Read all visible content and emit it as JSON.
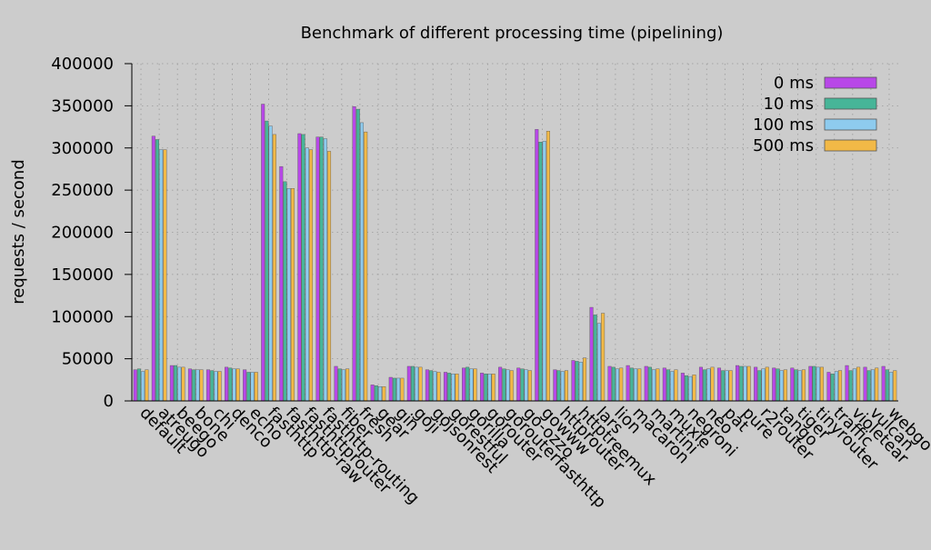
{
  "chart_data": {
    "type": "bar",
    "title": "Benchmark of different processing time (pipelining)",
    "xlabel": "",
    "ylabel": "requests / second",
    "ylim": [
      0,
      400000
    ],
    "yticks": [
      "0",
      "50000",
      "100000",
      "150000",
      "200000",
      "250000",
      "300000",
      "350000",
      "400000"
    ],
    "grid": true,
    "legend_position": "top-right",
    "categories": [
      "default",
      "atreugo",
      "beego",
      "bone",
      "chi",
      "denco",
      "echo",
      "fasthttp",
      "fasthttp-raw",
      "fasthttprouter",
      "fasthttp-routing",
      "fiber",
      "fresh",
      "gear",
      "gin",
      "goji",
      "gojsonrest",
      "gorestful",
      "gorilla",
      "gorouter",
      "gorouterfasthttp",
      "go-ozzo",
      "gowww",
      "httprouter",
      "httptreemux",
      "lars",
      "lion",
      "macaron",
      "martini",
      "muxie",
      "negroni",
      "neo",
      "pat",
      "pure",
      "r2router",
      "tango",
      "tiger",
      "tinyrouter",
      "traffic",
      "violetear",
      "vulcan",
      "webgo"
    ],
    "series": [
      {
        "name": "0 ms",
        "color": "#b847e8",
        "values": [
          37000,
          314000,
          42000,
          38000,
          37000,
          40000,
          37000,
          352000,
          278000,
          317000,
          313000,
          41000,
          349000,
          19000,
          28000,
          41000,
          37000,
          34000,
          39000,
          33000,
          40000,
          39000,
          322000,
          37000,
          48000,
          111000,
          41000,
          42000,
          41000,
          39000,
          33000,
          40000,
          39000,
          42000,
          40000,
          39000,
          39000,
          41000,
          34000,
          42000,
          40000,
          41000
        ]
      },
      {
        "name": "10 ms",
        "color": "#47b598",
        "values": [
          38000,
          310000,
          42000,
          37000,
          36000,
          39000,
          34000,
          332000,
          260000,
          316000,
          313000,
          38000,
          346000,
          18000,
          27000,
          41000,
          36000,
          33000,
          40000,
          32000,
          38000,
          38000,
          307000,
          36000,
          47000,
          102000,
          40000,
          39000,
          40000,
          37000,
          30000,
          37000,
          36000,
          41000,
          36000,
          38000,
          37000,
          41000,
          32000,
          36000,
          36000,
          37000
        ]
      },
      {
        "name": "100 ms",
        "color": "#8ecbee",
        "values": [
          35000,
          298000,
          40000,
          37000,
          35000,
          38000,
          34000,
          326000,
          252000,
          300000,
          311000,
          37000,
          330000,
          17000,
          27000,
          40000,
          35000,
          32000,
          38000,
          32000,
          37000,
          37000,
          308000,
          35000,
          46000,
          92000,
          38000,
          38000,
          37000,
          35000,
          29000,
          38000,
          36000,
          41000,
          38000,
          36000,
          36000,
          40000,
          35000,
          38000,
          37000,
          34000
        ]
      },
      {
        "name": "500 ms",
        "color": "#f2b947",
        "values": [
          37000,
          298000,
          40000,
          37000,
          35000,
          38000,
          34000,
          316000,
          252000,
          298000,
          296000,
          38000,
          319000,
          17000,
          27000,
          40000,
          34000,
          32000,
          38000,
          32000,
          36000,
          36000,
          320000,
          36000,
          51000,
          104000,
          39000,
          38000,
          38000,
          37000,
          31000,
          40000,
          36000,
          41000,
          40000,
          37000,
          37000,
          40000,
          36000,
          40000,
          39000,
          36000
        ]
      }
    ]
  }
}
